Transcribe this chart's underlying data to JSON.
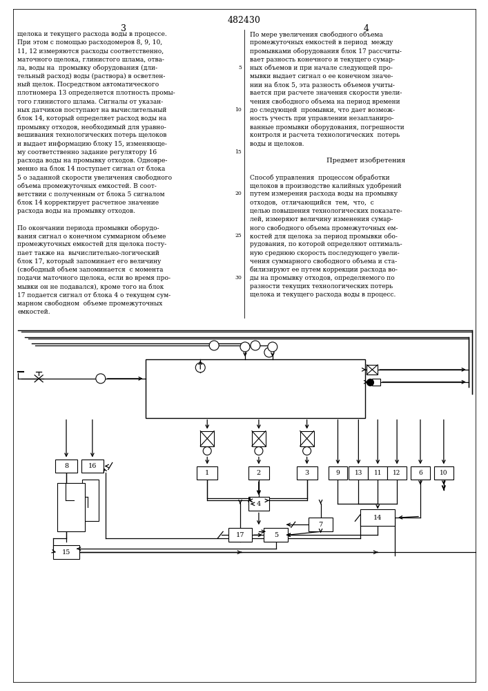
{
  "title": "482430",
  "background_color": "#ffffff",
  "left_col_text": [
    "щелока и текущего расхода воды в процессе.",
    "При этом с помощью расходомеров 8, 9, 10,",
    "11, 12 измеряются расходы соответственно,",
    "маточного щелока, глинистого шлама, отва-",
    "ла, воды на  промывку оборудования (дли-",
    "тельный расход) воды (раствора) в осветлен-",
    "ный щелок. Посредством автоматического",
    "плотномера 13 определяется плотность промы-",
    "того глинистого шлама. Сигналы от указан-",
    "ных датчиков поступают на вычислительный",
    "блок 14, который определяет расход воды на",
    "промывку отходов, необходимый для уравно-",
    "вешивания технологических потерь щелоков",
    "и выдает информацию блоку 15, изменяюще-",
    "му соответственно задание регулятору 16",
    "расхода воды на промывку отходов. Одновре-",
    "менно на блок 14 поступает сигнал от блока",
    "5 о заданной скорости увеличения свободного",
    "объема промежуточных емкостей. В соот-",
    "ветствии с полученным от блока 5 сигналом",
    "блок 14 корректирует расчетное значение",
    "расхода воды на промывку отходов.",
    "",
    "По окончании периода промывки оборудо-",
    "вания сигнал о конечном суммарном объеме",
    "промежуточных емкостей для щелока посту-",
    "пает также на  вычислительно-логический",
    "блок 17, который запоминает его величину",
    "(свободный объем запоминается  с момента",
    "подачи маточного щелока, если во время про-",
    "мывки он не подавался), кроме того на блок",
    "17 подается сигнал от блока 4 о текущем сум-",
    "марном свободном  объеме промежуточных",
    "емкостей."
  ],
  "right_col_text": [
    "По мере увеличения свободного объема",
    "промежуточных емкостей в период  между",
    "промывками оборудования блок 17 рассчиты-",
    "вает разность конечного и текущего сумар-",
    "ных объемов и при начале следующей про-",
    "мывки выдает сигнал о ее конечном значе-",
    "нии на блок 5, эта разность объемов учиты-",
    "вается при расчете значения скорости увели-",
    "чения свободного объема на период времени",
    "до следующей  промывки, что дает возмож-",
    "ность учесть при управлении незапланиро-",
    "ванные промывки оборудования, погрешности",
    "контроля и расчета технологических  потерь",
    "воды и щелоков.",
    "",
    "Предмет изобретения",
    "",
    "Способ управления  процессом обработки",
    "щелоков в производстве калийных удобрений",
    "путем измерения расхода воды на промывку",
    "отходов,  отличающийся  тем,  что,  с",
    "целью повышения технологических показате-",
    "лей, измеряют величину изменения сумар-",
    "ного свободного объема промежуточных ем-",
    "костей для щелока за период промывки обо-",
    "рудования, по которой определяют оптималь-",
    "ную среднюю скорость последующего увели-",
    "чения суммарного свободного объема и ста-",
    "билизируют ее путем коррекции расхода во-",
    "ды на промывку отходов, определяемого по",
    "разности текущих технологических потерь",
    "щелока и текущего расхода воды в процесс."
  ],
  "line_numbers": [
    5,
    10,
    15,
    20,
    25,
    30
  ]
}
